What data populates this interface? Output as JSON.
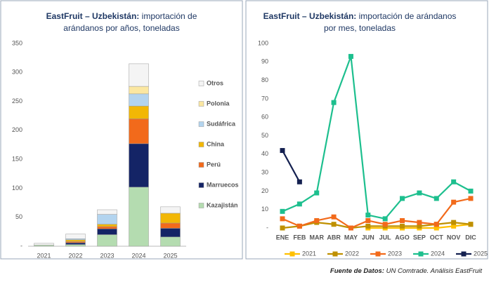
{
  "chart_data": [
    {
      "type": "stacked-bar",
      "title_bold": "EastFruit – Uzbekistán:",
      "title": [
        "importación de",
        "arándanos por años, toneladas"
      ],
      "categories": [
        "2021",
        "2022",
        "2023",
        "2024",
        "2025"
      ],
      "series": [
        {
          "name": "Kazajistán",
          "color": "#b4dcb0",
          "values": [
            2,
            3,
            20,
            102,
            16
          ]
        },
        {
          "name": "Marruecos",
          "color": "#142466",
          "values": [
            0,
            3,
            10,
            75,
            15
          ]
        },
        {
          "name": "Perú",
          "color": "#f26a1b",
          "values": [
            0,
            2,
            4,
            43,
            9
          ]
        },
        {
          "name": "China",
          "color": "#f2b705",
          "values": [
            0,
            3,
            4,
            22,
            17
          ]
        },
        {
          "name": "Sudáfrica",
          "color": "#b3d4ef",
          "values": [
            0,
            2,
            17,
            21,
            0
          ]
        },
        {
          "name": "Polonia",
          "color": "#fbe7a1",
          "values": [
            0,
            0,
            0,
            13,
            0
          ]
        },
        {
          "name": "Otros",
          "color": "#f4f4f4",
          "values": [
            3,
            8,
            8,
            39,
            11
          ]
        }
      ],
      "ylim": [
        0,
        350
      ],
      "yticks": [
        {
          "value": 0,
          "label": "-"
        },
        50,
        100,
        150,
        200,
        250,
        300,
        350
      ],
      "grid": false,
      "legend": "right"
    },
    {
      "type": "line",
      "title_bold": "EastFruit – Uzbekistán:",
      "title": [
        "importación de arándanos",
        "por mes, toneladas"
      ],
      "categories": [
        "ENE",
        "FEB",
        "MAR",
        "ABR",
        "MAY",
        "JUN",
        "JUL",
        "AGO",
        "SEP",
        "OCT",
        "NOV",
        "DIC"
      ],
      "series": [
        {
          "name": "2021",
          "color": "#ffc000",
          "values": [
            null,
            null,
            null,
            null,
            null,
            0,
            0,
            0,
            0,
            0,
            1,
            2
          ]
        },
        {
          "name": "2022",
          "color": "#bf9000",
          "values": [
            0,
            1,
            3,
            2,
            0,
            1,
            1,
            1,
            1,
            2,
            3,
            2
          ]
        },
        {
          "name": "2023",
          "color": "#f26a1b",
          "values": [
            5,
            1,
            4,
            6,
            0,
            4,
            2,
            4,
            3,
            2,
            14,
            16
          ]
        },
        {
          "name": "2024",
          "color": "#1dbf8e",
          "values": [
            9,
            13,
            19,
            68,
            93,
            7,
            5,
            16,
            19,
            16,
            25,
            20
          ]
        },
        {
          "name": "2025",
          "color": "#142050",
          "values": [
            42,
            25,
            null,
            null,
            null,
            null,
            null,
            null,
            null,
            null,
            null,
            null
          ]
        }
      ],
      "ylim": [
        0,
        100
      ],
      "yticks": [
        {
          "value": 0,
          "label": "-"
        },
        10,
        20,
        30,
        40,
        50,
        60,
        70,
        80,
        90,
        100
      ],
      "grid": false,
      "legend": "bottom"
    }
  ],
  "footer_bold": "Fuente de Datos:",
  "footer": "UN Comtrade. Análisis EastFruit"
}
